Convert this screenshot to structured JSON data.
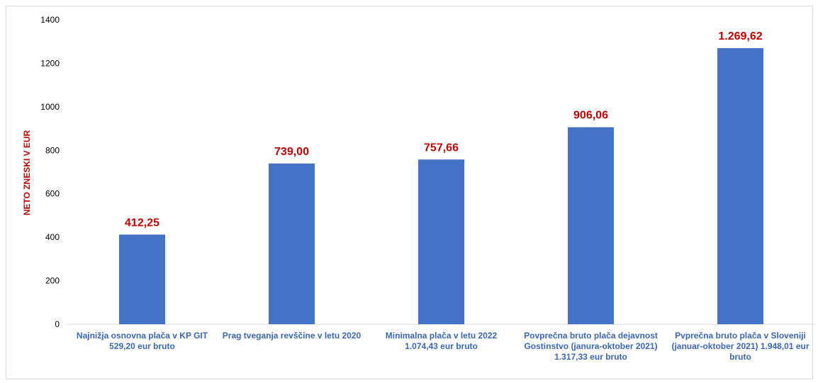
{
  "chart_data": {
    "type": "bar",
    "categories": [
      "Najnižja osnovna plača v KP GIT 529,20 eur bruto",
      "Prag tveganja revščine v letu 2020",
      "Minimalna plača v letu 2022 1.074,43 eur bruto",
      "Povprečna bruto plača dejavnost Gostinstvo (janura-oktober 2021) 1.317,33 eur bruto",
      "Pvprečna bruto plača v Sloveniji (januar-oktober 2021) 1.948,01 eur bruto"
    ],
    "values": [
      412.25,
      739.0,
      757.66,
      906.06,
      1269.62
    ],
    "data_labels": [
      "412,25",
      "739,00",
      "757,66",
      "906,06",
      "1.269,62"
    ],
    "title": "",
    "xlabel": "",
    "ylabel": "NETO ZNESKI V EUR",
    "ylim": [
      0,
      1400
    ],
    "yticks": [
      "0",
      "200",
      "400",
      "600",
      "800",
      "1000",
      "1200",
      "1400"
    ],
    "grid": false,
    "legend": "none",
    "colors": {
      "bar": "#4472c4",
      "data_label": "#c00000",
      "category_label": "#3a66b5",
      "ylabel": "#c00000",
      "axis": "#d9d9d9"
    }
  }
}
